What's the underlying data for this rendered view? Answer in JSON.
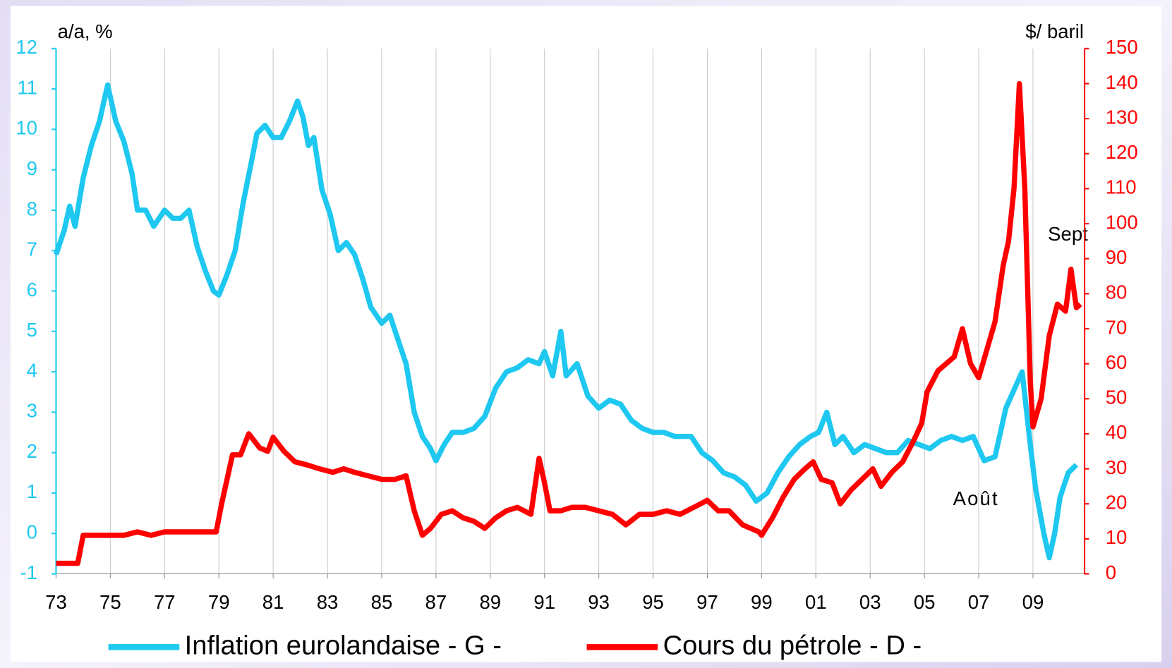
{
  "chart_data": {
    "type": "line",
    "y_label": "a/a, %",
    "y2_label": "$/ baril",
    "annotations": [
      "Sept",
      "Août"
    ],
    "xlim": [
      1973,
      2010.9
    ],
    "xticks": [
      {
        "value": 1973,
        "label": "73"
      },
      {
        "value": 1975,
        "label": "75"
      },
      {
        "value": 1977,
        "label": "77"
      },
      {
        "value": 1979,
        "label": "79"
      },
      {
        "value": 1981,
        "label": "81"
      },
      {
        "value": 1983,
        "label": "83"
      },
      {
        "value": 1985,
        "label": "85"
      },
      {
        "value": 1987,
        "label": "87"
      },
      {
        "value": 1989,
        "label": "89"
      },
      {
        "value": 1991,
        "label": "91"
      },
      {
        "value": 1993,
        "label": "93"
      },
      {
        "value": 1995,
        "label": "95"
      },
      {
        "value": 1997,
        "label": "97"
      },
      {
        "value": 1999,
        "label": "99"
      },
      {
        "value": 2001,
        "label": "01"
      },
      {
        "value": 2003,
        "label": "03"
      },
      {
        "value": 2005,
        "label": "05"
      },
      {
        "value": 2007,
        "label": "07"
      },
      {
        "value": 2009,
        "label": "09"
      }
    ],
    "ylim": [
      -1,
      12
    ],
    "yticks": [
      -1,
      0,
      1,
      2,
      3,
      4,
      5,
      6,
      7,
      8,
      9,
      10,
      11,
      12
    ],
    "y2lim": [
      0,
      150
    ],
    "y2ticks": [
      0,
      10,
      20,
      30,
      40,
      50,
      60,
      70,
      80,
      90,
      100,
      110,
      120,
      130,
      140,
      150
    ],
    "grid": true,
    "y_color": "#1ec8f0",
    "y2_color": "#ff0000",
    "series": [
      {
        "name": "Inflation eurolandaise - G -",
        "color": "#1ec8f0",
        "x": [
          1973.0,
          1973.3,
          1973.5,
          1973.7,
          1974.0,
          1974.3,
          1974.6,
          1974.9,
          1975.2,
          1975.5,
          1975.8,
          1976.0,
          1976.3,
          1976.6,
          1977.0,
          1977.3,
          1977.6,
          1977.9,
          1978.2,
          1978.5,
          1978.8,
          1979.0,
          1979.3,
          1979.6,
          1979.9,
          1980.2,
          1980.4,
          1980.7,
          1981.0,
          1981.3,
          1981.6,
          1981.9,
          1982.1,
          1982.3,
          1982.5,
          1982.8,
          1983.1,
          1983.4,
          1983.7,
          1984.0,
          1984.3,
          1984.6,
          1985.0,
          1985.3,
          1985.6,
          1985.9,
          1986.2,
          1986.5,
          1986.8,
          1987.0,
          1987.3,
          1987.6,
          1988.0,
          1988.4,
          1988.8,
          1989.2,
          1989.6,
          1990.0,
          1990.4,
          1990.8,
          1991.0,
          1991.3,
          1991.6,
          1991.8,
          1992.2,
          1992.6,
          1993.0,
          1993.4,
          1993.8,
          1994.2,
          1994.6,
          1995.0,
          1995.4,
          1995.8,
          1996.4,
          1996.8,
          1997.2,
          1997.6,
          1998.0,
          1998.4,
          1998.8,
          1999.2,
          1999.6,
          2000.0,
          2000.4,
          2000.8,
          2001.1,
          2001.4,
          2001.7,
          2002.0,
          2002.4,
          2002.8,
          2003.2,
          2003.6,
          2004.0,
          2004.4,
          2004.8,
          2005.2,
          2005.6,
          2006.0,
          2006.4,
          2006.8,
          2007.2,
          2007.6,
          2008.0,
          2008.4,
          2008.6,
          2008.9,
          2009.1,
          2009.4,
          2009.6,
          2009.8,
          2010.0,
          2010.3,
          2010.6
        ],
        "values": [
          6.9,
          7.5,
          8.1,
          7.6,
          8.8,
          9.6,
          10.2,
          11.1,
          10.2,
          9.7,
          8.9,
          8.0,
          8.0,
          7.6,
          8.0,
          7.8,
          7.8,
          8.0,
          7.1,
          6.5,
          6.0,
          5.9,
          6.4,
          7.0,
          8.2,
          9.2,
          9.9,
          10.1,
          9.8,
          9.8,
          10.2,
          10.7,
          10.3,
          9.6,
          9.8,
          8.5,
          7.9,
          7.0,
          7.2,
          6.9,
          6.3,
          5.6,
          5.2,
          5.4,
          4.8,
          4.2,
          3.0,
          2.4,
          2.1,
          1.8,
          2.2,
          2.5,
          2.5,
          2.6,
          2.9,
          3.6,
          4.0,
          4.1,
          4.3,
          4.2,
          4.5,
          3.9,
          5.0,
          3.9,
          4.2,
          3.4,
          3.1,
          3.3,
          3.2,
          2.8,
          2.6,
          2.5,
          2.5,
          2.4,
          2.4,
          2.0,
          1.8,
          1.5,
          1.4,
          1.2,
          0.8,
          1.0,
          1.5,
          1.9,
          2.2,
          2.4,
          2.5,
          3.0,
          2.2,
          2.4,
          2.0,
          2.2,
          2.1,
          2.0,
          2.0,
          2.3,
          2.2,
          2.1,
          2.3,
          2.4,
          2.3,
          2.4,
          1.8,
          1.9,
          3.1,
          3.7,
          4.0,
          2.2,
          1.1,
          0.0,
          -0.6,
          0.0,
          0.9,
          1.5,
          1.7
        ]
      },
      {
        "name": "Cours du pétrole - D -",
        "color": "#ff0000",
        "axis": "y2",
        "x": [
          1973.0,
          1973.8,
          1974.0,
          1975.5,
          1976.0,
          1976.5,
          1977.0,
          1978.0,
          1978.9,
          1979.1,
          1979.5,
          1979.8,
          1980.1,
          1980.5,
          1980.8,
          1981.0,
          1981.4,
          1981.8,
          1982.3,
          1982.7,
          1983.2,
          1983.6,
          1984.0,
          1984.5,
          1985.0,
          1985.5,
          1985.9,
          1986.2,
          1986.5,
          1986.8,
          1987.2,
          1987.6,
          1988.0,
          1988.4,
          1988.8,
          1989.2,
          1989.6,
          1990.0,
          1990.5,
          1990.8,
          1991.0,
          1991.2,
          1991.6,
          1992.0,
          1992.5,
          1993.0,
          1993.5,
          1994.0,
          1994.5,
          1995.0,
          1995.5,
          1996.0,
          1996.5,
          1997.0,
          1997.4,
          1997.8,
          1998.3,
          1998.9,
          1999.0,
          1999.4,
          1999.8,
          2000.2,
          2000.6,
          2000.9,
          2001.2,
          2001.6,
          2001.9,
          2002.3,
          2002.7,
          2003.1,
          2003.4,
          2003.8,
          2004.2,
          2004.6,
          2004.9,
          2005.1,
          2005.5,
          2005.8,
          2006.1,
          2006.4,
          2006.7,
          2007.0,
          2007.3,
          2007.6,
          2007.9,
          2008.1,
          2008.3,
          2008.5,
          2008.7,
          2008.9,
          2009.0,
          2009.3,
          2009.6,
          2009.9,
          2010.2,
          2010.4,
          2010.6,
          2010.75
        ],
        "values": [
          3,
          3,
          11,
          11,
          12,
          11,
          12,
          12,
          12,
          20,
          34,
          34,
          40,
          36,
          35,
          39,
          35,
          32,
          31,
          30,
          29,
          30,
          29,
          28,
          27,
          27,
          28,
          18,
          11,
          13,
          17,
          18,
          16,
          15,
          13,
          16,
          18,
          19,
          17,
          33,
          26,
          18,
          18,
          19,
          19,
          18,
          17,
          14,
          17,
          17,
          18,
          17,
          19,
          21,
          18,
          18,
          14,
          12,
          11,
          16,
          22,
          27,
          30,
          32,
          27,
          26,
          20,
          24,
          27,
          30,
          25,
          29,
          32,
          38,
          43,
          52,
          58,
          60,
          62,
          70,
          60,
          56,
          64,
          72,
          88,
          95,
          110,
          140,
          110,
          55,
          42,
          50,
          68,
          77,
          75,
          87,
          76,
          77
        ]
      }
    ],
    "legend": "bottom"
  }
}
